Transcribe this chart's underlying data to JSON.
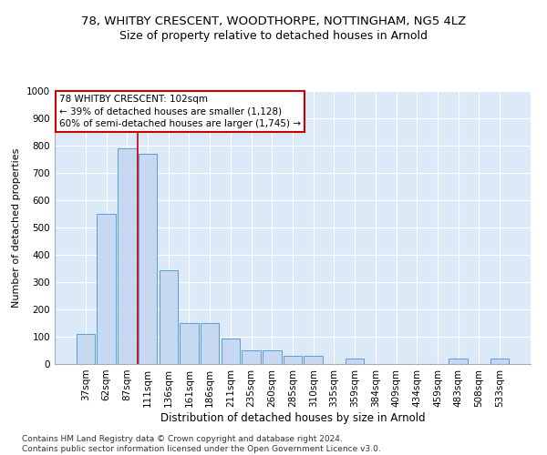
{
  "title1": "78, WHITBY CRESCENT, WOODTHORPE, NOTTINGHAM, NG5 4LZ",
  "title2": "Size of property relative to detached houses in Arnold",
  "xlabel": "Distribution of detached houses by size in Arnold",
  "ylabel": "Number of detached properties",
  "categories": [
    "37sqm",
    "62sqm",
    "87sqm",
    "111sqm",
    "136sqm",
    "161sqm",
    "186sqm",
    "211sqm",
    "235sqm",
    "260sqm",
    "285sqm",
    "310sqm",
    "335sqm",
    "359sqm",
    "384sqm",
    "409sqm",
    "434sqm",
    "459sqm",
    "483sqm",
    "508sqm",
    "533sqm"
  ],
  "values": [
    110,
    550,
    790,
    770,
    345,
    150,
    150,
    95,
    50,
    50,
    30,
    30,
    0,
    20,
    0,
    0,
    0,
    0,
    20,
    0,
    20
  ],
  "bar_color": "#c6d9f0",
  "bar_edge_color": "#5b9bd5",
  "vline_x": 2.5,
  "vline_color": "#cc0000",
  "annotation_text": "78 WHITBY CRESCENT: 102sqm\n← 39% of detached houses are smaller (1,128)\n60% of semi-detached houses are larger (1,745) →",
  "annotation_box_color": "white",
  "annotation_box_edge_color": "#cc0000",
  "ylim": [
    0,
    1000
  ],
  "yticks": [
    0,
    100,
    200,
    300,
    400,
    500,
    600,
    700,
    800,
    900,
    1000
  ],
  "footnote": "Contains HM Land Registry data © Crown copyright and database right 2024.\nContains public sector information licensed under the Open Government Licence v3.0.",
  "bg_color": "white",
  "plot_bg_color": "#dce9f8",
  "grid_color": "white",
  "title1_fontsize": 9.5,
  "title2_fontsize": 9,
  "xlabel_fontsize": 8.5,
  "ylabel_fontsize": 8,
  "tick_fontsize": 7.5,
  "annotation_fontsize": 7.5,
  "footnote_fontsize": 6.5
}
